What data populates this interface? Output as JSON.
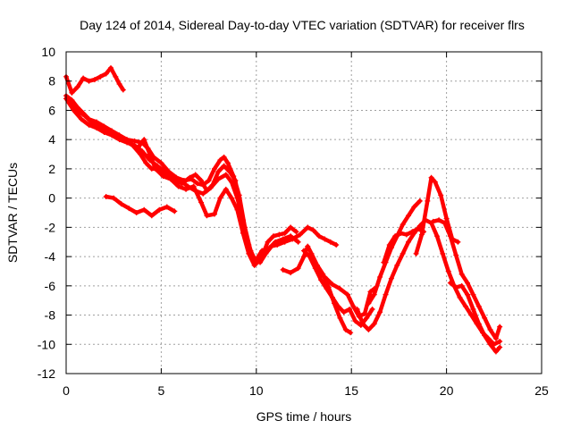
{
  "chart_data": {
    "type": "scatter",
    "title": "Day 124 of 2014, Sidereal Day-to-day VTEC variation (SDTVAR) for receiver flrs",
    "xlabel": "GPS time / hours",
    "ylabel": "SDTVAR / TECUs",
    "xlim": [
      0,
      25
    ],
    "ylim": [
      -12,
      10
    ],
    "xticks": [
      0,
      5,
      10,
      15,
      20,
      25
    ],
    "yticks": [
      -12,
      -10,
      -8,
      -6,
      -4,
      -2,
      0,
      2,
      4,
      6,
      8,
      10
    ],
    "grid": true,
    "marker": "+",
    "color": "#ff0000",
    "series": [
      {
        "values": [
          [
            0.0,
            8.3
          ],
          [
            0.3,
            7.2
          ],
          [
            0.6,
            7.6
          ],
          [
            0.9,
            8.2
          ],
          [
            1.2,
            8.0
          ],
          [
            1.5,
            8.1
          ],
          [
            1.8,
            8.3
          ],
          [
            2.1,
            8.5
          ],
          [
            2.35,
            8.9
          ],
          [
            2.6,
            8.3
          ],
          [
            2.8,
            7.8
          ],
          [
            3.0,
            7.4
          ]
        ]
      },
      {
        "values": [
          [
            0.0,
            7.0
          ],
          [
            0.3,
            6.7
          ],
          [
            0.6,
            6.2
          ],
          [
            0.9,
            5.8
          ],
          [
            1.2,
            5.4
          ],
          [
            1.6,
            5.2
          ],
          [
            2.0,
            4.9
          ],
          [
            2.4,
            4.6
          ],
          [
            2.8,
            4.3
          ],
          [
            3.2,
            4.0
          ],
          [
            3.6,
            3.9
          ],
          [
            4.0,
            3.8
          ],
          [
            4.3,
            3.4
          ],
          [
            4.6,
            2.8
          ],
          [
            5.0,
            2.4
          ],
          [
            5.4,
            1.8
          ],
          [
            5.8,
            1.4
          ],
          [
            6.2,
            1.2
          ],
          [
            6.6,
            1.3
          ],
          [
            6.9,
            1.0
          ],
          [
            7.2,
            0.9
          ],
          [
            7.5,
            1.2
          ],
          [
            7.8,
            2.0
          ],
          [
            8.1,
            2.6
          ],
          [
            8.3,
            2.8
          ],
          [
            8.5,
            2.4
          ],
          [
            8.8,
            1.5
          ],
          [
            9.1,
            0.2
          ],
          [
            9.4,
            -2.0
          ],
          [
            9.7,
            -3.6
          ],
          [
            10.0,
            -4.4
          ],
          [
            10.3,
            -4.0
          ],
          [
            10.6,
            -3.0
          ],
          [
            10.9,
            -2.6
          ],
          [
            11.2,
            -2.5
          ],
          [
            11.5,
            -2.4
          ],
          [
            11.8,
            -2.0
          ],
          [
            12.1,
            -2.3
          ]
        ]
      },
      {
        "values": [
          [
            0.0,
            6.8
          ],
          [
            0.4,
            6.0
          ],
          [
            0.8,
            5.4
          ],
          [
            1.2,
            5.0
          ],
          [
            1.6,
            4.8
          ],
          [
            2.0,
            4.5
          ],
          [
            2.4,
            4.3
          ],
          [
            2.8,
            4.0
          ],
          [
            3.2,
            3.8
          ],
          [
            3.6,
            3.6
          ],
          [
            4.0,
            3.2
          ],
          [
            4.4,
            2.6
          ],
          [
            4.8,
            2.2
          ],
          [
            5.2,
            1.8
          ],
          [
            5.6,
            1.5
          ],
          [
            6.0,
            1.2
          ],
          [
            6.4,
            0.8
          ],
          [
            6.8,
            0.5
          ],
          [
            7.2,
            0.3
          ],
          [
            7.6,
            0.7
          ],
          [
            8.0,
            1.3
          ],
          [
            8.4,
            1.6
          ],
          [
            8.7,
            1.1
          ],
          [
            9.0,
            0.0
          ],
          [
            9.3,
            -1.5
          ],
          [
            9.6,
            -3.2
          ],
          [
            9.9,
            -4.3
          ],
          [
            10.2,
            -4.4
          ],
          [
            10.5,
            -3.8
          ],
          [
            10.8,
            -3.3
          ],
          [
            11.1,
            -3.2
          ],
          [
            11.5,
            -3.0
          ],
          [
            11.9,
            -2.8
          ],
          [
            12.3,
            -2.5
          ],
          [
            12.7,
            -2.0
          ],
          [
            13.0,
            -2.2
          ],
          [
            13.3,
            -2.6
          ],
          [
            13.6,
            -2.8
          ],
          [
            13.9,
            -3.0
          ],
          [
            14.2,
            -3.2
          ]
        ]
      },
      {
        "values": [
          [
            0.2,
            6.5
          ],
          [
            0.6,
            6.0
          ],
          [
            1.0,
            5.6
          ],
          [
            1.5,
            5.0
          ],
          [
            2.0,
            4.8
          ],
          [
            2.5,
            4.4
          ],
          [
            3.0,
            4.0
          ],
          [
            3.5,
            3.6
          ],
          [
            3.9,
            3.0
          ],
          [
            4.2,
            2.4
          ],
          [
            4.5,
            2.0
          ],
          [
            4.9,
            2.0
          ],
          [
            5.3,
            1.6
          ],
          [
            5.7,
            1.2
          ],
          [
            6.1,
            1.0
          ],
          [
            6.5,
            1.4
          ],
          [
            6.8,
            1.6
          ],
          [
            7.1,
            1.2
          ],
          [
            7.4,
            0.5
          ],
          [
            7.7,
            0.9
          ],
          [
            8.0,
            1.8
          ],
          [
            8.3,
            2.2
          ],
          [
            8.6,
            1.8
          ],
          [
            8.9,
            1.2
          ],
          [
            9.1,
            -0.5
          ],
          [
            9.4,
            -2.6
          ],
          [
            9.7,
            -3.9
          ],
          [
            10.0,
            -4.2
          ],
          [
            10.3,
            -3.6
          ],
          [
            10.7,
            -3.4
          ],
          [
            11.0,
            -3.0
          ],
          [
            11.4,
            -2.8
          ],
          [
            11.8,
            -2.6
          ],
          [
            12.2,
            -3.0
          ]
        ]
      },
      {
        "values": [
          [
            3.8,
            3.5
          ],
          [
            4.1,
            4.0
          ],
          [
            4.4,
            3.0
          ],
          [
            4.7,
            2.0
          ],
          [
            5.1,
            1.5
          ],
          [
            5.5,
            1.3
          ],
          [
            5.9,
            0.8
          ],
          [
            6.3,
            0.6
          ],
          [
            6.7,
            0.8
          ],
          [
            7.1,
            -0.3
          ],
          [
            7.4,
            -1.2
          ],
          [
            7.8,
            -1.1
          ],
          [
            8.1,
            0.0
          ],
          [
            8.4,
            0.6
          ],
          [
            8.7,
            0.0
          ],
          [
            9.0,
            -0.8
          ],
          [
            9.3,
            -2.4
          ],
          [
            9.6,
            -3.8
          ],
          [
            9.9,
            -4.6
          ],
          [
            10.2,
            -4.2
          ]
        ]
      },
      {
        "values": [
          [
            2.1,
            0.1
          ],
          [
            2.5,
            0.0
          ],
          [
            2.9,
            -0.4
          ],
          [
            3.3,
            -0.7
          ],
          [
            3.7,
            -1.0
          ],
          [
            4.1,
            -0.8
          ],
          [
            4.5,
            -1.2
          ],
          [
            4.9,
            -0.8
          ],
          [
            5.3,
            -0.6
          ],
          [
            5.7,
            -0.9
          ]
        ]
      },
      {
        "values": [
          [
            11.4,
            -4.9
          ],
          [
            11.8,
            -5.1
          ],
          [
            12.2,
            -4.8
          ],
          [
            12.5,
            -4.0
          ],
          [
            12.7,
            -3.3
          ],
          [
            12.9,
            -3.8
          ],
          [
            13.2,
            -4.6
          ],
          [
            13.5,
            -5.2
          ],
          [
            13.8,
            -6.1
          ],
          [
            14.1,
            -7.2
          ],
          [
            14.4,
            -8.2
          ],
          [
            14.7,
            -9.0
          ],
          [
            14.95,
            -9.2
          ]
        ]
      },
      {
        "values": [
          [
            12.5,
            -3.6
          ],
          [
            12.8,
            -4.0
          ],
          [
            13.1,
            -4.8
          ],
          [
            13.4,
            -5.6
          ],
          [
            13.7,
            -6.2
          ],
          [
            14.0,
            -6.8
          ],
          [
            14.3,
            -7.4
          ],
          [
            14.6,
            -7.8
          ],
          [
            14.9,
            -7.6
          ],
          [
            15.2,
            -8.4
          ],
          [
            15.5,
            -8.7
          ],
          [
            15.8,
            -8.2
          ],
          [
            16.1,
            -7.6
          ]
        ]
      },
      {
        "values": [
          [
            13.2,
            -5.0
          ],
          [
            13.6,
            -5.4
          ],
          [
            14.0,
            -5.9
          ],
          [
            14.4,
            -6.2
          ],
          [
            14.8,
            -6.6
          ],
          [
            15.1,
            -7.4
          ],
          [
            15.4,
            -8.1
          ],
          [
            15.7,
            -7.9
          ],
          [
            16.0,
            -6.4
          ],
          [
            16.2,
            -6.2
          ]
        ]
      },
      {
        "values": [
          [
            15.3,
            -7.6
          ],
          [
            15.6,
            -8.6
          ],
          [
            15.9,
            -9.0
          ],
          [
            16.2,
            -8.6
          ],
          [
            16.5,
            -7.8
          ],
          [
            16.8,
            -6.6
          ],
          [
            17.1,
            -5.5
          ],
          [
            17.4,
            -4.6
          ],
          [
            17.7,
            -3.8
          ],
          [
            18.0,
            -3.0
          ],
          [
            18.3,
            -2.4
          ],
          [
            18.6,
            -1.9
          ],
          [
            18.9,
            -1.5
          ],
          [
            19.2,
            -1.7
          ],
          [
            19.5,
            -2.6
          ],
          [
            19.8,
            -3.8
          ],
          [
            20.1,
            -5.0
          ],
          [
            20.4,
            -6.0
          ],
          [
            20.7,
            -6.8
          ],
          [
            21.0,
            -7.4
          ],
          [
            21.3,
            -8.0
          ],
          [
            21.6,
            -8.6
          ],
          [
            21.9,
            -9.2
          ],
          [
            22.2,
            -9.6
          ],
          [
            22.5,
            -10.0
          ],
          [
            22.8,
            -9.8
          ]
        ]
      },
      {
        "values": [
          [
            15.9,
            -7.2
          ],
          [
            16.2,
            -6.6
          ],
          [
            16.5,
            -5.4
          ],
          [
            16.8,
            -4.4
          ],
          [
            17.1,
            -3.4
          ],
          [
            17.4,
            -2.6
          ],
          [
            17.7,
            -1.8
          ],
          [
            18.0,
            -1.2
          ],
          [
            18.3,
            -0.6
          ],
          [
            18.6,
            -0.2
          ]
        ]
      },
      {
        "values": [
          [
            16.7,
            -4.4
          ],
          [
            17.0,
            -3.2
          ],
          [
            17.3,
            -2.6
          ],
          [
            17.6,
            -2.4
          ],
          [
            17.9,
            -2.5
          ],
          [
            18.2,
            -2.3
          ],
          [
            18.5,
            -2.1
          ],
          [
            18.8,
            -2.3
          ]
        ]
      },
      {
        "values": [
          [
            18.4,
            -3.8
          ],
          [
            18.7,
            -2.5
          ],
          [
            19.0,
            -0.2
          ],
          [
            19.2,
            1.4
          ],
          [
            19.4,
            1.1
          ],
          [
            19.7,
            0.2
          ],
          [
            20.0,
            -1.4
          ],
          [
            20.3,
            -2.8
          ],
          [
            20.6,
            -3.0
          ]
        ]
      },
      {
        "values": [
          [
            19.3,
            -1.6
          ],
          [
            19.6,
            -1.5
          ],
          [
            19.9,
            -1.7
          ],
          [
            20.2,
            -2.6
          ],
          [
            20.5,
            -3.9
          ],
          [
            20.8,
            -5.2
          ],
          [
            21.1,
            -5.8
          ],
          [
            21.4,
            -6.6
          ],
          [
            21.7,
            -7.4
          ],
          [
            22.0,
            -8.2
          ],
          [
            22.3,
            -9.0
          ],
          [
            22.6,
            -9.6
          ],
          [
            22.8,
            -8.8
          ]
        ]
      },
      {
        "values": [
          [
            20.2,
            -5.8
          ],
          [
            20.5,
            -6.1
          ],
          [
            20.8,
            -6.0
          ],
          [
            21.1,
            -6.6
          ],
          [
            21.4,
            -7.6
          ],
          [
            21.7,
            -8.6
          ],
          [
            22.0,
            -9.4
          ],
          [
            22.3,
            -10.0
          ],
          [
            22.6,
            -10.5
          ],
          [
            22.8,
            -10.2
          ]
        ]
      }
    ]
  }
}
